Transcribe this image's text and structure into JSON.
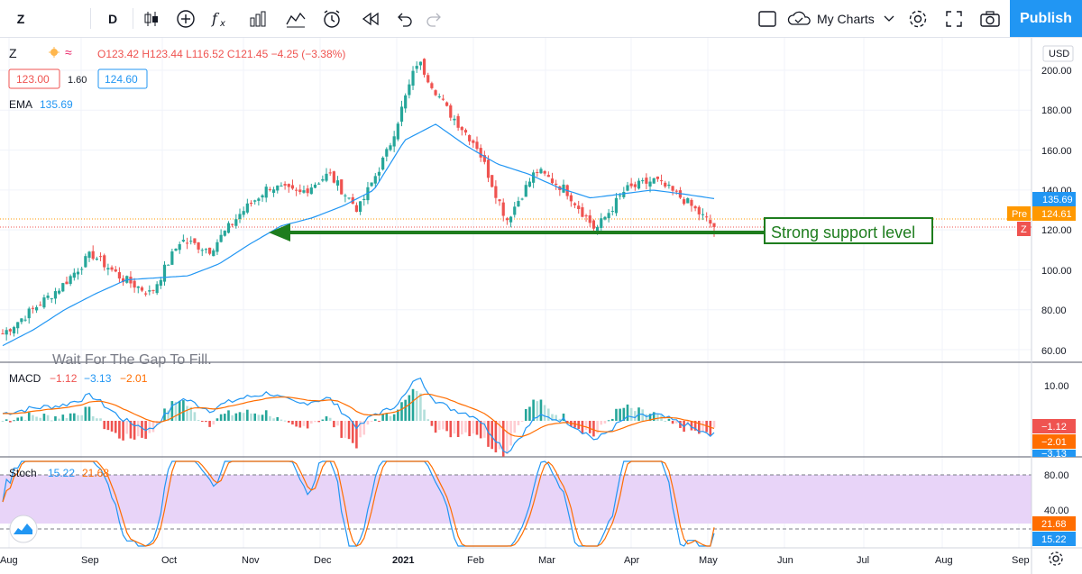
{
  "toolbar": {
    "symbol": "Z",
    "interval": "D",
    "my_charts": "My Charts",
    "publish": "Publish",
    "icons": [
      "candles-icon",
      "add-compare-icon",
      "indicators-icon",
      "templates-icon",
      "alert-icon",
      "replay-icon",
      "undo-icon",
      "redo-icon"
    ]
  },
  "legend": {
    "symbol": "Z",
    "ohlc": "O123.42 H123.44 L116.52 C121.45 −4.25 (−3.38%)",
    "bid": "123.00",
    "spread": "1.60",
    "ask": "124.60",
    "ema_label": "EMA",
    "ema_value": "135.69"
  },
  "annotations": {
    "support_text": "Strong support level",
    "watermark_text": "Wait For The Gap To Fill."
  },
  "colors": {
    "up": "#26a69a",
    "down": "#ef5350",
    "ema": "#2196f3",
    "support": "#2e7d32",
    "pre": "#ff9800",
    "stoch_band": "#e1bee7"
  },
  "price_axis": {
    "currency": "USD",
    "ticks": [
      "200.00",
      "180.00",
      "160.00",
      "140.00",
      "120.00",
      "100.00",
      "80.00",
      "60.00"
    ],
    "ema_badge": "135.69",
    "pre_label": "Pre",
    "pre_value": "124.61",
    "z_badge": "Z"
  },
  "macd": {
    "label": "MACD",
    "v1": "−1.12",
    "v2": "−3.13",
    "v3": "−2.01",
    "tick": "10.00",
    "badge_hist": "−1.12",
    "badge_signal": "−2.01",
    "badge_macd": "−3.13"
  },
  "stoch": {
    "label": "Stoch",
    "k": "15.22",
    "d": "21.68",
    "ticks": [
      "80.00",
      "40.00"
    ],
    "badge_d": "21.68",
    "badge_k": "15.22"
  },
  "time_axis": [
    "Aug",
    "Sep",
    "Oct",
    "Nov",
    "Dec",
    "2021",
    "Feb",
    "Mar",
    "Apr",
    "May",
    "Jun",
    "Jul",
    "Aug",
    "Sep"
  ],
  "chart_data": {
    "type": "candlestick",
    "symbol": "Z",
    "interval": "D",
    "ylim": [
      55,
      210
    ],
    "x": [
      "Aug",
      "Sep",
      "Oct",
      "Nov",
      "Dec",
      "2021",
      "Feb",
      "Mar",
      "Apr",
      "May"
    ],
    "close_path": [
      68,
      80,
      92,
      108,
      96,
      88,
      115,
      110,
      128,
      142,
      138,
      148,
      130,
      160,
      205,
      180,
      162,
      125,
      150,
      140,
      120,
      140,
      145,
      135,
      121.45
    ],
    "ema_path": [
      62,
      70,
      80,
      88,
      95,
      96,
      97,
      103,
      113,
      122,
      126,
      132,
      140,
      165,
      173,
      162,
      153,
      148,
      141,
      136,
      138,
      140,
      138,
      135.69
    ],
    "support_level": 119,
    "last": {
      "open": 123.42,
      "high": 123.44,
      "low": 116.52,
      "close": 121.45,
      "change": -4.25,
      "change_pct": -3.38
    },
    "ema_last": 135.69,
    "pre_market": 124.61,
    "macd": {
      "macd": -3.13,
      "signal": -2.01,
      "histogram": -1.12
    },
    "stochastic": {
      "k": 15.22,
      "d": 21.68,
      "upper_band": 80,
      "lower_band": 20
    }
  }
}
